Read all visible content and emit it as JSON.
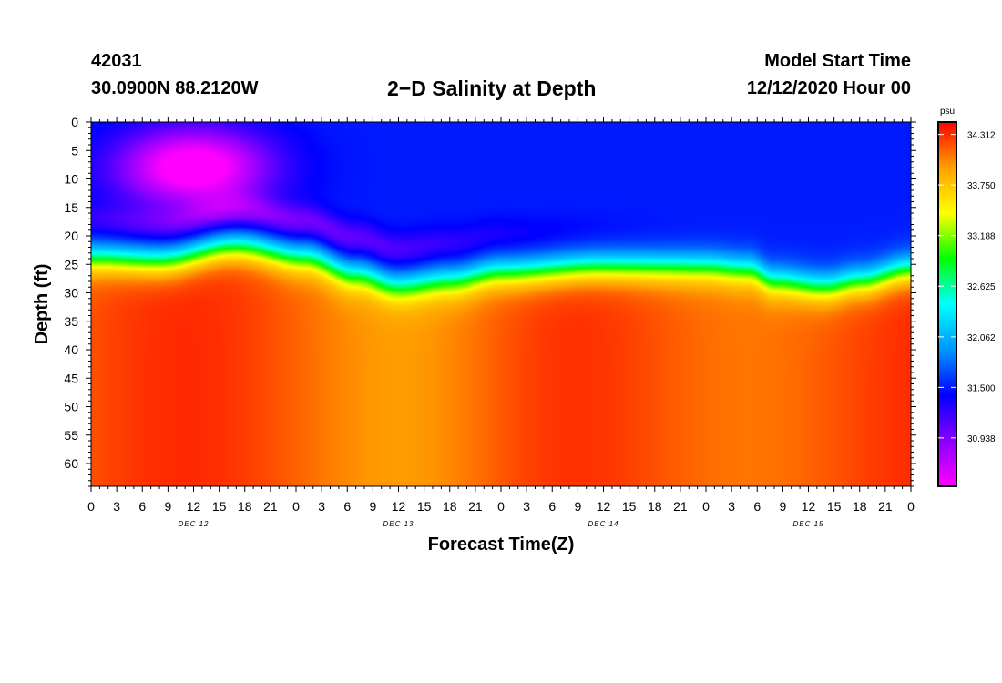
{
  "header": {
    "station_id": "42031",
    "coordinates": "30.0900N 88.2120W",
    "title": "2−D Salinity at Depth",
    "model_start_label": "Model Start Time",
    "model_start_time": "12/12/2020 Hour 00"
  },
  "chart_data": {
    "type": "heatmap",
    "title": "2−D Salinity at Depth",
    "xlabel": "Forecast Time(Z)",
    "ylabel": "Depth (ft)",
    "x_range_hours": [
      0,
      96
    ],
    "y_range_ft": [
      0,
      64
    ],
    "x_ticks": [
      "0",
      "3",
      "6",
      "9",
      "12",
      "15",
      "18",
      "21",
      "0",
      "3",
      "6",
      "9",
      "12",
      "15",
      "18",
      "21",
      "0",
      "3",
      "6",
      "9",
      "12",
      "15",
      "18",
      "21",
      "0",
      "3",
      "6",
      "9",
      "12",
      "15",
      "18",
      "21",
      "0"
    ],
    "day_labels": [
      {
        "label": "DEC 12",
        "hour": 12
      },
      {
        "label": "DEC 13",
        "hour": 36
      },
      {
        "label": "DEC 14",
        "hour": 60
      },
      {
        "label": "DEC 15",
        "hour": 84
      }
    ],
    "y_ticks": [
      0,
      5,
      10,
      15,
      20,
      25,
      30,
      35,
      40,
      45,
      50,
      55,
      60
    ],
    "colorbar": {
      "unit": "psu",
      "range": [
        30.4,
        34.45
      ],
      "ticks": [
        "34.312",
        "33.750",
        "33.188",
        "32.625",
        "32.062",
        "31.500",
        "30.938"
      ],
      "colors": [
        "#ff00ff",
        "#8800ff",
        "#0000ff",
        "#0096ff",
        "#00ffff",
        "#00ff00",
        "#ffff00",
        "#ffa000",
        "#ff0000"
      ]
    },
    "halocline_depth_ft": [
      {
        "hour": 0,
        "depth": 24
      },
      {
        "hour": 8,
        "depth": 24.5
      },
      {
        "hour": 17,
        "depth": 22
      },
      {
        "hour": 25,
        "depth": 24
      },
      {
        "hour": 31,
        "depth": 27
      },
      {
        "hour": 36,
        "depth": 29
      },
      {
        "hour": 42,
        "depth": 28
      },
      {
        "hour": 48,
        "depth": 26.5
      },
      {
        "hour": 60,
        "depth": 25.5
      },
      {
        "hour": 72,
        "depth": 25.5
      },
      {
        "hour": 77,
        "depth": 26
      },
      {
        "hour": 80,
        "depth": 28
      },
      {
        "hour": 86,
        "depth": 29
      },
      {
        "hour": 90,
        "depth": 28
      },
      {
        "hour": 96,
        "depth": 26
      }
    ],
    "surface_salinity_psu": 31.5,
    "surface_minimum_psu": 30.5,
    "deep_salinity_psu": 34.2
  }
}
